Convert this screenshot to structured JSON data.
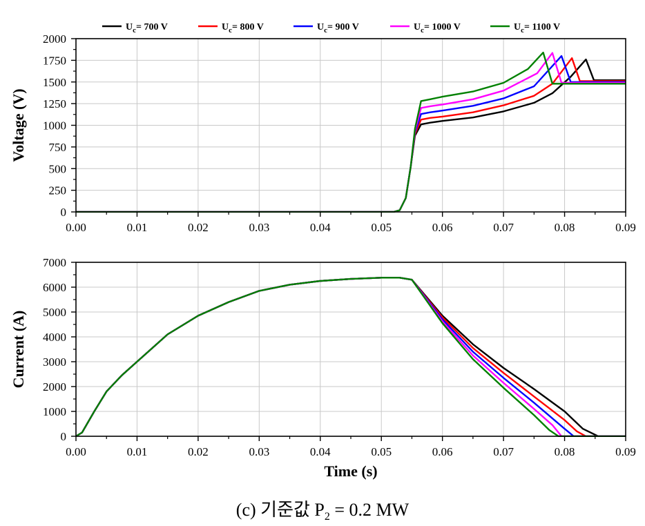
{
  "caption": {
    "prefix": "(c) 기준값 P",
    "sub": "2",
    "suffix": " = 0.2 MW"
  },
  "legend": {
    "entries": [
      {
        "base": "U",
        "sub": "c",
        "rest": "= 700 V",
        "color": "#000000"
      },
      {
        "base": "U",
        "sub": "c",
        "rest": "= 800 V",
        "color": "#ff0000"
      },
      {
        "base": "U",
        "sub": "c",
        "rest": "= 900 V",
        "color": "#0000ff"
      },
      {
        "base": "U",
        "sub": "c",
        "rest": "= 1000 V",
        "color": "#ff00ff"
      },
      {
        "base": "U",
        "sub": "c",
        "rest": "= 1100 V",
        "color": "#008000"
      }
    ]
  },
  "chart_data": [
    {
      "type": "line",
      "title": "",
      "xlabel": "",
      "ylabel": "Voltage (V)",
      "xlim": [
        0,
        0.09
      ],
      "ylim": [
        0,
        2000
      ],
      "xticks": [
        "0.00",
        "0.01",
        "0.02",
        "0.03",
        "0.04",
        "0.05",
        "0.06",
        "0.07",
        "0.08",
        "0.09"
      ],
      "yticks": [
        "0",
        "250",
        "500",
        "750",
        "1000",
        "1250",
        "1500",
        "1750",
        "2000"
      ],
      "grid": true,
      "legend_position": "top",
      "series": [
        {
          "name": "Uc= 700 V",
          "color": "#000000",
          "x": [
            0,
            0.052,
            0.053,
            0.054,
            0.0548,
            0.0555,
            0.0565,
            0.058,
            0.06,
            0.065,
            0.07,
            0.075,
            0.078,
            0.081,
            0.0835,
            0.0848,
            0.085,
            0.09
          ],
          "y": [
            0,
            0,
            20,
            160,
            520,
            880,
            1010,
            1030,
            1050,
            1090,
            1160,
            1260,
            1370,
            1560,
            1760,
            1520,
            1520,
            1520
          ]
        },
        {
          "name": "Uc= 800 V",
          "color": "#ff0000",
          "x": [
            0,
            0.052,
            0.053,
            0.054,
            0.0548,
            0.0555,
            0.0565,
            0.058,
            0.06,
            0.065,
            0.07,
            0.075,
            0.078,
            0.0812,
            0.0825,
            0.0827,
            0.09
          ],
          "y": [
            0,
            0,
            20,
            160,
            520,
            900,
            1065,
            1085,
            1100,
            1150,
            1230,
            1340,
            1480,
            1775,
            1510,
            1510,
            1510
          ]
        },
        {
          "name": "Uc= 900 V",
          "color": "#0000ff",
          "x": [
            0,
            0.052,
            0.053,
            0.054,
            0.0548,
            0.0555,
            0.0565,
            0.058,
            0.06,
            0.065,
            0.07,
            0.075,
            0.0795,
            0.081,
            0.0812,
            0.09
          ],
          "y": [
            0,
            0,
            20,
            160,
            520,
            920,
            1130,
            1150,
            1170,
            1225,
            1310,
            1450,
            1800,
            1500,
            1500,
            1500
          ]
        },
        {
          "name": "Uc= 1000 V",
          "color": "#ff00ff",
          "x": [
            0,
            0.052,
            0.053,
            0.054,
            0.0548,
            0.0555,
            0.0565,
            0.058,
            0.06,
            0.065,
            0.07,
            0.0755,
            0.078,
            0.0795,
            0.0797,
            0.09
          ],
          "y": [
            0,
            0,
            20,
            160,
            520,
            940,
            1200,
            1220,
            1240,
            1300,
            1400,
            1600,
            1835,
            1490,
            1490,
            1490
          ]
        },
        {
          "name": "Uc= 1100 V",
          "color": "#008000",
          "x": [
            0,
            0.052,
            0.053,
            0.054,
            0.0548,
            0.0555,
            0.0565,
            0.058,
            0.06,
            0.065,
            0.07,
            0.074,
            0.0765,
            0.078,
            0.0782,
            0.09
          ],
          "y": [
            0,
            0,
            20,
            160,
            520,
            960,
            1280,
            1300,
            1330,
            1390,
            1490,
            1650,
            1840,
            1480,
            1480,
            1480
          ]
        }
      ]
    },
    {
      "type": "line",
      "title": "",
      "xlabel": "Time (s)",
      "ylabel": "Current (A)",
      "xlim": [
        0,
        0.09
      ],
      "ylim": [
        0,
        7000
      ],
      "xticks": [
        "0.00",
        "0.01",
        "0.02",
        "0.03",
        "0.04",
        "0.05",
        "0.06",
        "0.07",
        "0.08",
        "0.09"
      ],
      "yticks": [
        "0",
        "1000",
        "2000",
        "3000",
        "4000",
        "5000",
        "6000",
        "7000"
      ],
      "grid": true,
      "series": [
        {
          "name": "Uc= 700 V",
          "color": "#000000",
          "x": [
            0,
            0.001,
            0.003,
            0.005,
            0.0075,
            0.01,
            0.015,
            0.02,
            0.025,
            0.03,
            0.035,
            0.04,
            0.045,
            0.05,
            0.053,
            0.055,
            0.06,
            0.065,
            0.07,
            0.075,
            0.08,
            0.083,
            0.0855,
            0.088,
            0.09
          ],
          "y": [
            0,
            150,
            1000,
            1800,
            2450,
            3000,
            4100,
            4850,
            5400,
            5850,
            6100,
            6250,
            6330,
            6380,
            6380,
            6300,
            4850,
            3700,
            2750,
            1900,
            1000,
            300,
            0,
            0,
            0
          ]
        },
        {
          "name": "Uc= 800 V",
          "color": "#ff0000",
          "x": [
            0,
            0.001,
            0.003,
            0.005,
            0.0075,
            0.01,
            0.015,
            0.02,
            0.025,
            0.03,
            0.035,
            0.04,
            0.045,
            0.05,
            0.053,
            0.055,
            0.06,
            0.065,
            0.07,
            0.075,
            0.08,
            0.082,
            0.0835,
            0.085,
            0.09
          ],
          "y": [
            0,
            150,
            1000,
            1800,
            2450,
            3000,
            4100,
            4850,
            5400,
            5850,
            6100,
            6250,
            6330,
            6380,
            6380,
            6300,
            4780,
            3550,
            2550,
            1600,
            650,
            200,
            0,
            0,
            0
          ]
        },
        {
          "name": "Uc= 900 V",
          "color": "#0000ff",
          "x": [
            0,
            0.001,
            0.003,
            0.005,
            0.0075,
            0.01,
            0.015,
            0.02,
            0.025,
            0.03,
            0.035,
            0.04,
            0.045,
            0.05,
            0.053,
            0.055,
            0.06,
            0.065,
            0.07,
            0.075,
            0.08,
            0.0815,
            0.083,
            0.09
          ],
          "y": [
            0,
            150,
            1000,
            1800,
            2450,
            3000,
            4100,
            4850,
            5400,
            5850,
            6100,
            6250,
            6330,
            6380,
            6380,
            6300,
            4700,
            3400,
            2350,
            1350,
            300,
            0,
            0,
            0
          ]
        },
        {
          "name": "Uc= 1000 V",
          "color": "#ff00ff",
          "x": [
            0,
            0.001,
            0.003,
            0.005,
            0.0075,
            0.01,
            0.015,
            0.02,
            0.025,
            0.03,
            0.035,
            0.04,
            0.045,
            0.05,
            0.053,
            0.055,
            0.06,
            0.065,
            0.07,
            0.075,
            0.078,
            0.0795,
            0.081,
            0.09
          ],
          "y": [
            0,
            150,
            1000,
            1800,
            2450,
            3000,
            4100,
            4850,
            5400,
            5850,
            6100,
            6250,
            6330,
            6380,
            6380,
            6300,
            4620,
            3250,
            2150,
            1100,
            450,
            0,
            0,
            0
          ]
        },
        {
          "name": "Uc= 1100 V",
          "color": "#008000",
          "x": [
            0,
            0.001,
            0.003,
            0.005,
            0.0075,
            0.01,
            0.015,
            0.02,
            0.025,
            0.03,
            0.035,
            0.04,
            0.045,
            0.05,
            0.053,
            0.055,
            0.06,
            0.065,
            0.07,
            0.075,
            0.0775,
            0.079,
            0.09
          ],
          "y": [
            0,
            150,
            1000,
            1800,
            2450,
            3000,
            4100,
            4850,
            5400,
            5850,
            6100,
            6250,
            6330,
            6380,
            6380,
            6300,
            4550,
            3100,
            1950,
            850,
            250,
            0,
            0
          ]
        }
      ]
    }
  ]
}
